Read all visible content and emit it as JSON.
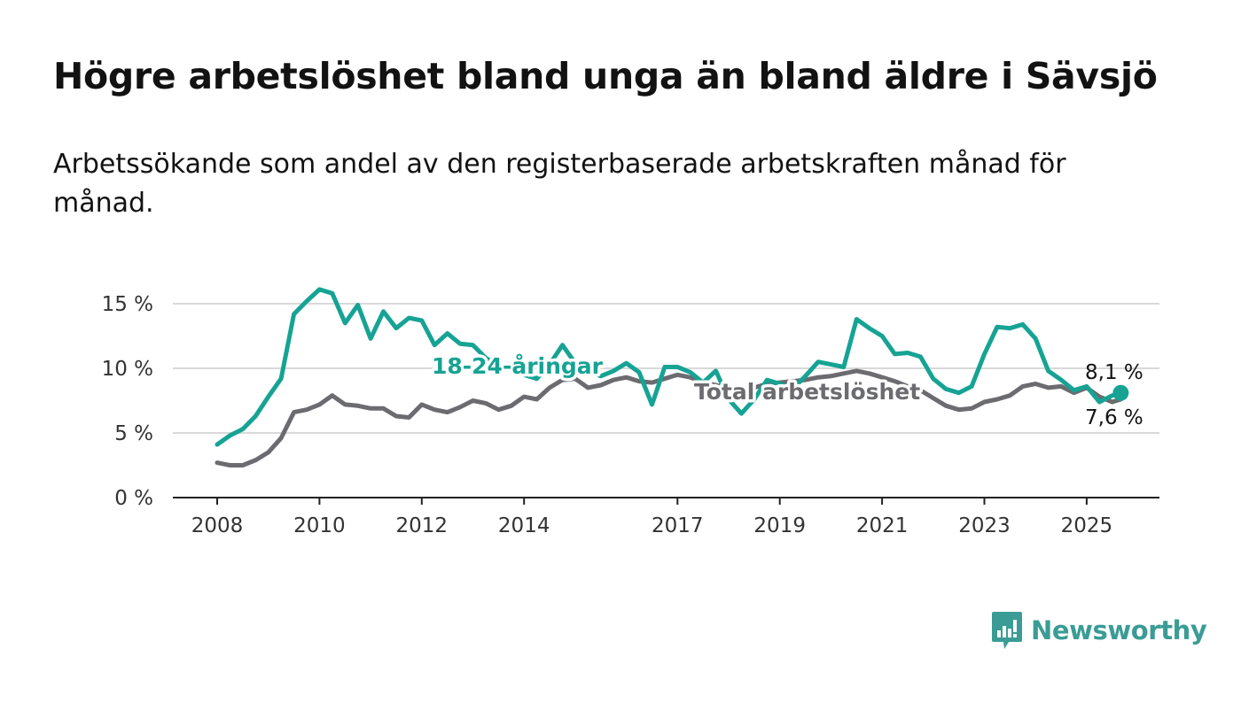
{
  "title": "Högre arbetslöshet bland unga än bland äldre i Sävsjö",
  "subtitle": "Arbetssökande som andel av den registerbaserade arbetskraften månad för månad.",
  "logo": {
    "text": "Newsworthy",
    "icon": "chat-bar-chart-icon",
    "color": "#3a9c95"
  },
  "chart_data": {
    "type": "line",
    "x_range": [
      "2008-01",
      "2025-09"
    ],
    "ylim": [
      0,
      15
    ],
    "y_ticks": [
      {
        "value": 0,
        "label": "0 %"
      },
      {
        "value": 5,
        "label": "5 %"
      },
      {
        "value": 10,
        "label": "10 %"
      },
      {
        "value": 15,
        "label": "15 %"
      }
    ],
    "x_ticks": [
      {
        "value": 2008,
        "label": "2008"
      },
      {
        "value": 2010,
        "label": "2010"
      },
      {
        "value": 2012,
        "label": "2012"
      },
      {
        "value": 2014,
        "label": "2014"
      },
      {
        "value": 2017,
        "label": "2017"
      },
      {
        "value": 2019,
        "label": "2019"
      },
      {
        "value": 2021,
        "label": "2021"
      },
      {
        "value": 2023,
        "label": "2023"
      },
      {
        "value": 2025,
        "label": "2025"
      }
    ],
    "grid": true,
    "series": [
      {
        "name": "18-24-åringar",
        "color": "#16a394",
        "end_label": "8,1 %",
        "points": [
          [
            "2008-01",
            4.1
          ],
          [
            "2008-04",
            4.8
          ],
          [
            "2008-07",
            5.3
          ],
          [
            "2008-10",
            6.3
          ],
          [
            "2009-01",
            7.8
          ],
          [
            "2009-04",
            9.2
          ],
          [
            "2009-07",
            14.2
          ],
          [
            "2009-10",
            15.2
          ],
          [
            "2010-01",
            16.1
          ],
          [
            "2010-04",
            15.8
          ],
          [
            "2010-07",
            13.5
          ],
          [
            "2010-10",
            14.9
          ],
          [
            "2011-01",
            12.3
          ],
          [
            "2011-04",
            14.4
          ],
          [
            "2011-07",
            13.1
          ],
          [
            "2011-10",
            13.9
          ],
          [
            "2012-01",
            13.7
          ],
          [
            "2012-04",
            11.8
          ],
          [
            "2012-07",
            12.7
          ],
          [
            "2012-10",
            11.9
          ],
          [
            "2013-01",
            11.8
          ],
          [
            "2013-04",
            10.8
          ],
          [
            "2013-07",
            10.2
          ],
          [
            "2013-10",
            9.9
          ],
          [
            "2014-01",
            9.5
          ],
          [
            "2014-04",
            9.2
          ],
          [
            "2014-07",
            10.3
          ],
          [
            "2014-10",
            11.8
          ],
          [
            "2015-01",
            10.4
          ],
          [
            "2015-04",
            9.8
          ],
          [
            "2015-07",
            9.4
          ],
          [
            "2015-10",
            9.8
          ],
          [
            "2016-01",
            10.4
          ],
          [
            "2016-04",
            9.7
          ],
          [
            "2016-07",
            7.2
          ],
          [
            "2016-10",
            10.1
          ],
          [
            "2017-01",
            10.1
          ],
          [
            "2017-04",
            9.7
          ],
          [
            "2017-07",
            8.9
          ],
          [
            "2017-10",
            9.8
          ],
          [
            "2018-01",
            7.6
          ],
          [
            "2018-04",
            6.5
          ],
          [
            "2018-07",
            7.6
          ],
          [
            "2018-10",
            9.1
          ],
          [
            "2019-01",
            8.8
          ],
          [
            "2019-04",
            8.4
          ],
          [
            "2019-07",
            9.4
          ],
          [
            "2019-10",
            10.5
          ],
          [
            "2020-01",
            10.3
          ],
          [
            "2020-04",
            10.1
          ],
          [
            "2020-07",
            13.8
          ],
          [
            "2020-10",
            13.1
          ],
          [
            "2021-01",
            12.5
          ],
          [
            "2021-04",
            11.1
          ],
          [
            "2021-07",
            11.2
          ],
          [
            "2021-10",
            10.9
          ],
          [
            "2022-01",
            9.2
          ],
          [
            "2022-04",
            8.4
          ],
          [
            "2022-07",
            8.1
          ],
          [
            "2022-10",
            8.6
          ],
          [
            "2023-01",
            11.1
          ],
          [
            "2023-04",
            13.2
          ],
          [
            "2023-07",
            13.1
          ],
          [
            "2023-10",
            13.4
          ],
          [
            "2024-01",
            12.3
          ],
          [
            "2024-04",
            9.8
          ],
          [
            "2024-07",
            9.1
          ],
          [
            "2024-10",
            8.3
          ],
          [
            "2025-01",
            8.6
          ],
          [
            "2025-04",
            7.4
          ],
          [
            "2025-07",
            7.9
          ],
          [
            "2025-09",
            8.1
          ]
        ]
      },
      {
        "name": "Total arbetslöshet",
        "color": "#6c6b70",
        "end_label": "7,6 %",
        "points": [
          [
            "2008-01",
            2.7
          ],
          [
            "2008-04",
            2.5
          ],
          [
            "2008-07",
            2.5
          ],
          [
            "2008-10",
            2.9
          ],
          [
            "2009-01",
            3.5
          ],
          [
            "2009-04",
            4.6
          ],
          [
            "2009-07",
            6.6
          ],
          [
            "2009-10",
            6.8
          ],
          [
            "2010-01",
            7.2
          ],
          [
            "2010-04",
            7.9
          ],
          [
            "2010-07",
            7.2
          ],
          [
            "2010-10",
            7.1
          ],
          [
            "2011-01",
            6.9
          ],
          [
            "2011-04",
            6.9
          ],
          [
            "2011-07",
            6.3
          ],
          [
            "2011-10",
            6.2
          ],
          [
            "2012-01",
            7.2
          ],
          [
            "2012-04",
            6.8
          ],
          [
            "2012-07",
            6.6
          ],
          [
            "2012-10",
            7.0
          ],
          [
            "2013-01",
            7.5
          ],
          [
            "2013-04",
            7.3
          ],
          [
            "2013-07",
            6.8
          ],
          [
            "2013-10",
            7.1
          ],
          [
            "2014-01",
            7.8
          ],
          [
            "2014-04",
            7.6
          ],
          [
            "2014-07",
            8.5
          ],
          [
            "2014-10",
            9.1
          ],
          [
            "2015-01",
            9.2
          ],
          [
            "2015-04",
            8.5
          ],
          [
            "2015-07",
            8.7
          ],
          [
            "2015-10",
            9.1
          ],
          [
            "2016-01",
            9.3
          ],
          [
            "2016-04",
            9.0
          ],
          [
            "2016-07",
            8.9
          ],
          [
            "2016-10",
            9.2
          ],
          [
            "2017-01",
            9.5
          ],
          [
            "2017-04",
            9.3
          ],
          [
            "2017-07",
            8.9
          ],
          [
            "2017-10",
            8.7
          ],
          [
            "2018-01",
            8.4
          ],
          [
            "2018-04",
            8.3
          ],
          [
            "2018-07",
            8.5
          ],
          [
            "2018-10",
            8.8
          ],
          [
            "2019-01",
            8.9
          ],
          [
            "2019-04",
            9.0
          ],
          [
            "2019-07",
            9.1
          ],
          [
            "2019-10",
            9.3
          ],
          [
            "2020-01",
            9.4
          ],
          [
            "2020-04",
            9.6
          ],
          [
            "2020-07",
            9.8
          ],
          [
            "2020-10",
            9.6
          ],
          [
            "2021-01",
            9.3
          ],
          [
            "2021-04",
            9.0
          ],
          [
            "2021-07",
            8.6
          ],
          [
            "2021-10",
            8.3
          ],
          [
            "2022-01",
            7.7
          ],
          [
            "2022-04",
            7.1
          ],
          [
            "2022-07",
            6.8
          ],
          [
            "2022-10",
            6.9
          ],
          [
            "2023-01",
            7.4
          ],
          [
            "2023-04",
            7.6
          ],
          [
            "2023-07",
            7.9
          ],
          [
            "2023-10",
            8.6
          ],
          [
            "2024-01",
            8.8
          ],
          [
            "2024-04",
            8.5
          ],
          [
            "2024-07",
            8.6
          ],
          [
            "2024-10",
            8.1
          ],
          [
            "2025-01",
            8.5
          ],
          [
            "2025-04",
            7.8
          ],
          [
            "2025-07",
            7.4
          ],
          [
            "2025-09",
            7.6
          ]
        ]
      }
    ],
    "series_labels_inline": true
  }
}
